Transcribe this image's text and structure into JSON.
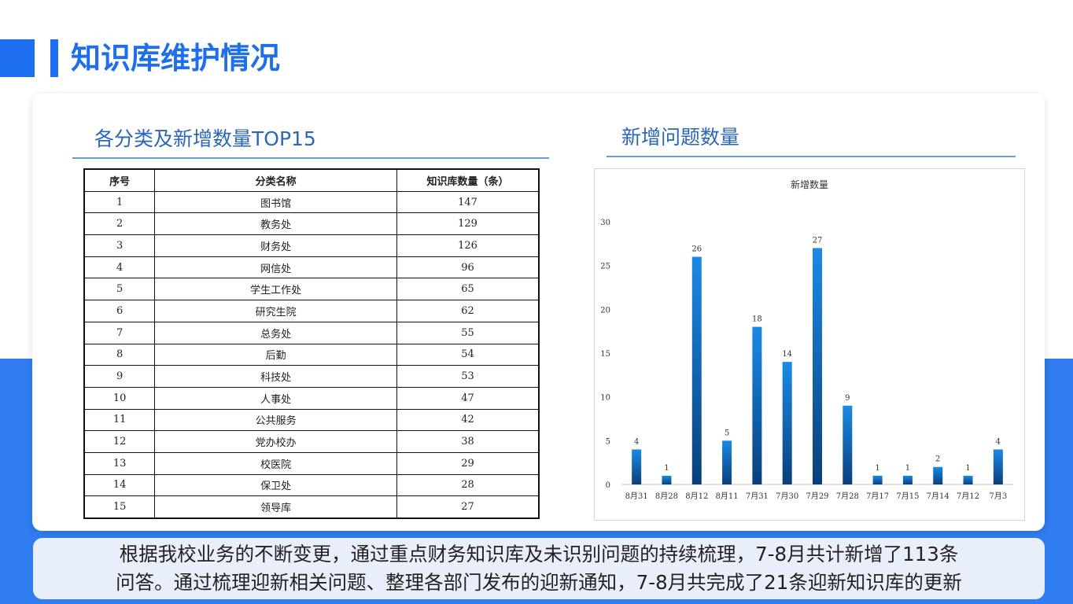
{
  "page": {
    "title": "知识库维护情况",
    "colors": {
      "accent": "#1e6fe8",
      "band": "#2f7df0",
      "bar_top": "#1a8ae6",
      "bar_bottom": "#0a3f7a"
    }
  },
  "table_section": {
    "title": "各分类及新增数量TOP15",
    "headers": [
      "序号",
      "分类名称",
      "知识库数量（条）"
    ],
    "rows": [
      [
        "1",
        "图书馆",
        "147"
      ],
      [
        "2",
        "教务处",
        "129"
      ],
      [
        "3",
        "财务处",
        "126"
      ],
      [
        "4",
        "网信处",
        "96"
      ],
      [
        "5",
        "学生工作处",
        "65"
      ],
      [
        "6",
        "研究生院",
        "62"
      ],
      [
        "7",
        "总务处",
        "55"
      ],
      [
        "8",
        "后勤",
        "54"
      ],
      [
        "9",
        "科技处",
        "53"
      ],
      [
        "10",
        "人事处",
        "47"
      ],
      [
        "11",
        "公共服务",
        "42"
      ],
      [
        "12",
        "党办校办",
        "38"
      ],
      [
        "13",
        "校医院",
        "29"
      ],
      [
        "14",
        "保卫处",
        "28"
      ],
      [
        "15",
        "领导库",
        "27"
      ]
    ]
  },
  "chart_section": {
    "title": "新增问题数量"
  },
  "chart_data": {
    "type": "bar",
    "title": "新增数量",
    "categories": [
      "8月31",
      "8月28",
      "8月12",
      "8月11",
      "7月31",
      "7月30",
      "7月29",
      "7月28",
      "7月17",
      "7月15",
      "7月14",
      "7月12",
      "7月3"
    ],
    "values": [
      4,
      1,
      26,
      5,
      18,
      14,
      27,
      9,
      1,
      1,
      2,
      1,
      4
    ],
    "yticks": [
      0,
      5,
      10,
      15,
      20,
      25,
      30
    ],
    "ylim": [
      0,
      30
    ],
    "xlabel": "",
    "ylabel": "",
    "grid": false,
    "data_labels": true
  },
  "summary": {
    "line1": "根据我校业务的不断变更，通过重点财务知识库及未识别问题的持续梳理，7-8月共计新增了113条",
    "line2": "问答。通过梳理迎新相关问题、整理各部门发布的迎新通知，7-8月共完成了21条迎新知识库的更新"
  }
}
